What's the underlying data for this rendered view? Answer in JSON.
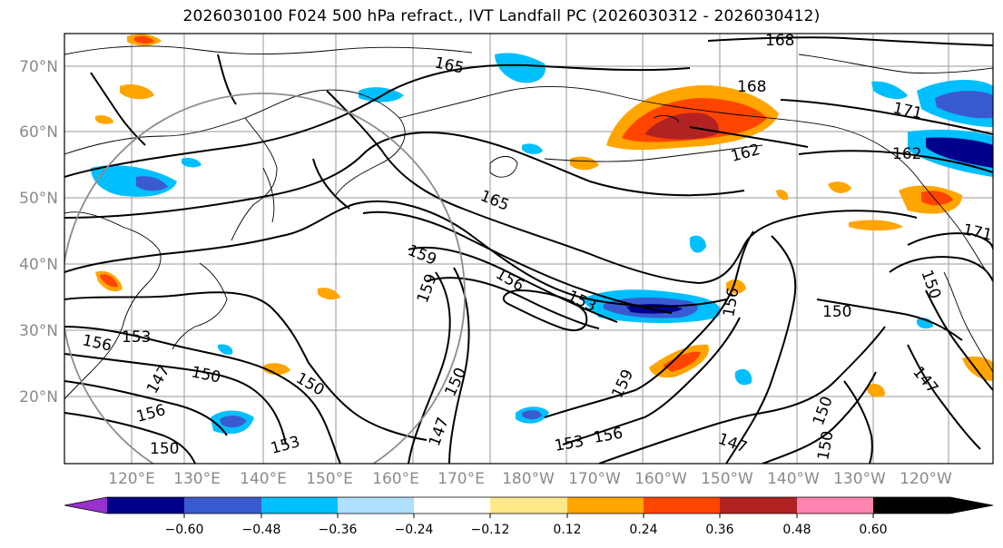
{
  "title": "2026030100 F024 500 hPa refract., IVT Landfall PC (2026030312 - 2026030412)",
  "lat_labels": [
    "70°N",
    "60°N",
    "50°N",
    "40°N",
    "30°N",
    "20°N"
  ],
  "lon_labels": [
    "120°E",
    "130°E",
    "140°E",
    "150°E",
    "160°E",
    "170°E",
    "180°W",
    "170°W",
    "160°W",
    "150°W",
    "140°W",
    "130°W",
    "120°W"
  ],
  "colorbar": {
    "ticks": [
      "−0.60",
      "−0.48",
      "−0.36",
      "−0.24",
      "−0.12",
      "0.12",
      "0.24",
      "0.36",
      "0.48",
      "0.60"
    ],
    "colors": [
      "#9932cc",
      "#00008b",
      "#3a5bd0",
      "#00bfff",
      "#b0e0ff",
      "#ffffff",
      "#ffe88a",
      "#ffa500",
      "#ff4500",
      "#b22222",
      "#ff85b0"
    ]
  },
  "contour_labels": [
    "168",
    "165",
    "168",
    "171",
    "162",
    "171",
    "162",
    "165",
    "159",
    "156",
    "153",
    "159",
    "156",
    "150",
    "156",
    "153",
    "150",
    "150",
    "147",
    "159",
    "156",
    "153",
    "147",
    "150",
    "150",
    "147",
    "153",
    "156",
    "150",
    "150",
    "147",
    "150"
  ]
}
